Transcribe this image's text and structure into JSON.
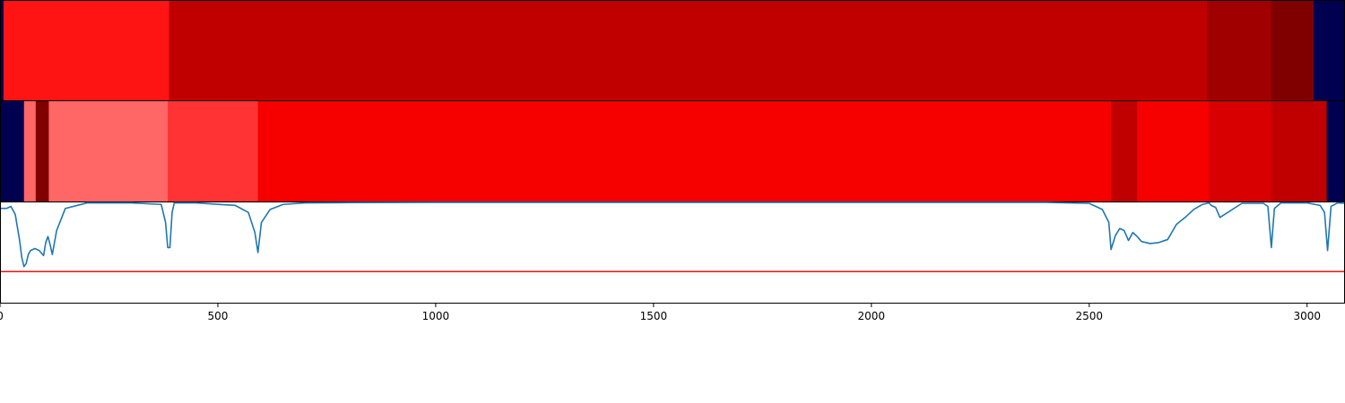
{
  "chart_data": [
    {
      "type": "heatmap",
      "colors": {
        "bg": "#000050",
        "c0": "#ff1414",
        "c1": "#c00000"
      },
      "segments": [
        {
          "start": 0,
          "end": 8,
          "color": "#000050"
        },
        {
          "start": 8,
          "end": 388,
          "color": "#ff1414"
        },
        {
          "start": 388,
          "end": 2770,
          "color": "#c00000"
        },
        {
          "start": 2770,
          "end": 2918,
          "color": "#a00000"
        },
        {
          "start": 2918,
          "end": 3015,
          "color": "#800000"
        },
        {
          "start": 3015,
          "end": 3087,
          "color": "#000050"
        }
      ]
    },
    {
      "type": "heatmap",
      "segments": [
        {
          "start": 0,
          "end": 55,
          "color": "#000050"
        },
        {
          "start": 55,
          "end": 82,
          "color": "#ff6666"
        },
        {
          "start": 82,
          "end": 112,
          "color": "#800000"
        },
        {
          "start": 112,
          "end": 385,
          "color": "#ff6666"
        },
        {
          "start": 385,
          "end": 592,
          "color": "#ff3333"
        },
        {
          "start": 592,
          "end": 2550,
          "color": "#f60000"
        },
        {
          "start": 2550,
          "end": 2610,
          "color": "#c00000"
        },
        {
          "start": 2610,
          "end": 2775,
          "color": "#f60000"
        },
        {
          "start": 2775,
          "end": 2918,
          "color": "#d80000"
        },
        {
          "start": 2918,
          "end": 3045,
          "color": "#c00000"
        },
        {
          "start": 3045,
          "end": 3087,
          "color": "#000050"
        }
      ]
    },
    {
      "type": "line",
      "xlim": [
        0,
        3087
      ],
      "ylim": [
        0,
        1
      ],
      "xticks": [
        0,
        500,
        1000,
        1500,
        2000,
        2500,
        3000
      ],
      "threshold": {
        "y": 0.31,
        "color": "#ee1111"
      },
      "series": [
        {
          "color": "#1f77b4",
          "x": [
            0,
            15,
            25,
            35,
            45,
            50,
            55,
            60,
            65,
            70,
            80,
            90,
            100,
            105,
            110,
            115,
            120,
            130,
            150,
            200,
            300,
            370,
            380,
            385,
            390,
            395,
            400,
            450,
            540,
            570,
            585,
            592,
            600,
            620,
            650,
            700,
            800,
            1000,
            1500,
            2000,
            2400,
            2500,
            2530,
            2545,
            2550,
            2560,
            2570,
            2580,
            2590,
            2600,
            2610,
            2620,
            2640,
            2660,
            2680,
            2700,
            2720,
            2740,
            2760,
            2775,
            2780,
            2790,
            2800,
            2850,
            2900,
            2910,
            2918,
            2925,
            2940,
            3000,
            3030,
            3040,
            3047,
            3055,
            3070,
            3087
          ],
          "y": [
            0.94,
            0.94,
            0.96,
            0.88,
            0.62,
            0.45,
            0.36,
            0.39,
            0.48,
            0.52,
            0.54,
            0.52,
            0.47,
            0.6,
            0.66,
            0.58,
            0.48,
            0.72,
            0.94,
            0.995,
            0.995,
            0.98,
            0.8,
            0.55,
            0.55,
            0.9,
            0.995,
            0.995,
            0.97,
            0.9,
            0.7,
            0.5,
            0.8,
            0.93,
            0.98,
            0.995,
            0.998,
            1.0,
            1.0,
            1.0,
            1.0,
            0.99,
            0.93,
            0.8,
            0.53,
            0.67,
            0.74,
            0.72,
            0.62,
            0.7,
            0.66,
            0.61,
            0.59,
            0.6,
            0.63,
            0.78,
            0.85,
            0.93,
            0.98,
            0.995,
            0.97,
            0.95,
            0.85,
            0.99,
            0.99,
            0.96,
            0.55,
            0.94,
            0.995,
            0.995,
            0.97,
            0.9,
            0.52,
            0.96,
            0.995,
            0.99
          ]
        }
      ]
    }
  ]
}
